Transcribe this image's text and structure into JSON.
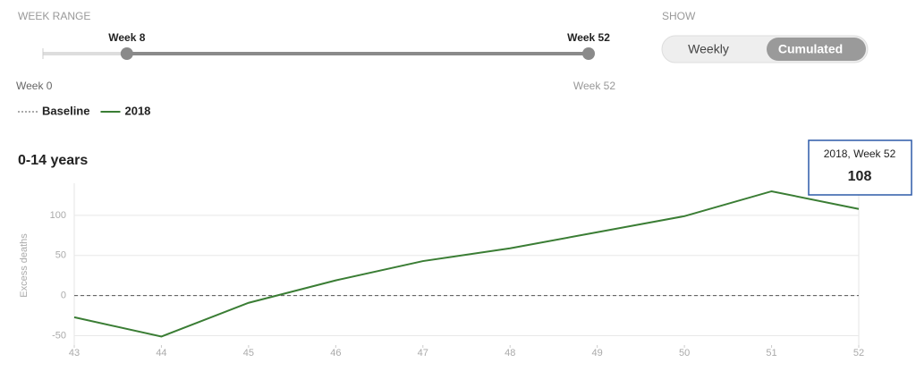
{
  "controls": {
    "week_range": {
      "label": "WEEK RANGE",
      "min": 0,
      "max": 52,
      "start": 8,
      "end": 52,
      "start_label": "Week 8",
      "end_label": "Week 52",
      "min_label": "Week 0",
      "max_label": "Week 52"
    },
    "show": {
      "label": "SHOW",
      "options": [
        "Weekly",
        "Cumulated"
      ],
      "selected": 1
    }
  },
  "chart_data": {
    "type": "line",
    "title": "0-14 years",
    "y_label": "Excess deaths",
    "x": [
      43,
      44,
      45,
      46,
      47,
      48,
      49,
      50,
      51,
      52
    ],
    "series": [
      {
        "name": "Baseline",
        "color": "#555555",
        "dashed": true,
        "values": [
          0,
          0,
          0,
          0,
          0,
          0,
          0,
          0,
          0,
          0
        ]
      },
      {
        "name": "2018",
        "color": "#3a7d34",
        "values": [
          -27,
          -51,
          -9,
          19,
          43,
          59,
          79,
          99,
          130,
          108
        ]
      }
    ],
    "xlim": [
      43,
      52
    ],
    "xticks": [
      43,
      44,
      45,
      46,
      47,
      48,
      49,
      50,
      51,
      52
    ],
    "ylim": [
      -65,
      140
    ],
    "yticks": [
      -50,
      0,
      50,
      100
    ],
    "grid": true,
    "tooltip": {
      "title": "2018, Week 52",
      "series": 1,
      "index": 9
    }
  }
}
